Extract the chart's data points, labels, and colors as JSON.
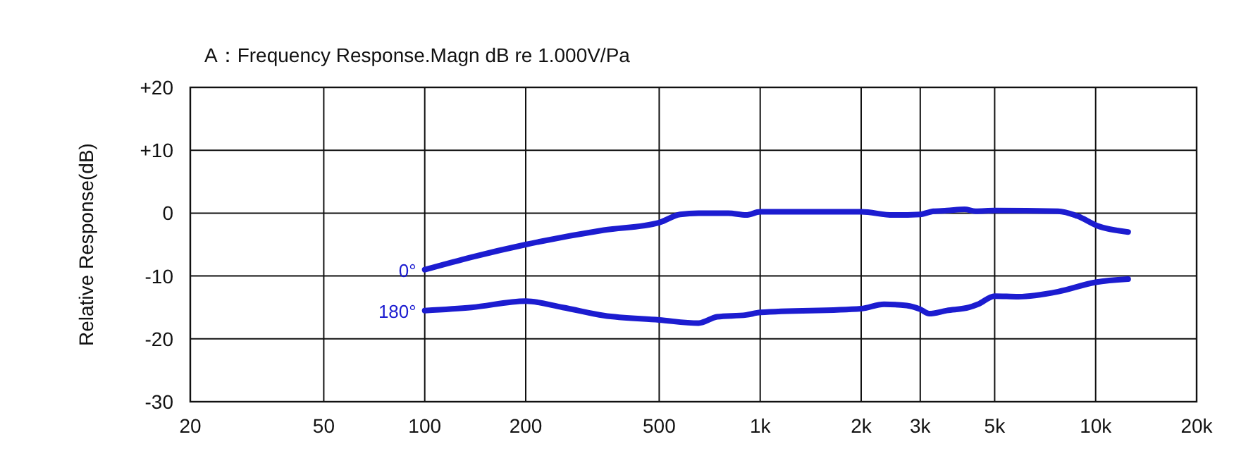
{
  "chart_data": {
    "type": "line",
    "title": "A：Frequency Response.Magn  dB re 1.000V/Pa",
    "ylabel": "Relative Response(dB)",
    "log": "x",
    "xlim": [
      20,
      20000
    ],
    "xticks": [
      20,
      50,
      100,
      200,
      500,
      {
        "value": 1000,
        "label": "1k"
      },
      {
        "value": 2000,
        "label": "2k"
      },
      {
        "value": 3000,
        "label": "3k"
      },
      {
        "value": 5000,
        "label": "5k"
      },
      {
        "value": 10000,
        "label": "10k"
      },
      {
        "value": 20000,
        "label": "20k"
      }
    ],
    "ylim": [
      -30,
      20
    ],
    "yticks": [
      {
        "value": 20,
        "label": "+20"
      },
      {
        "value": 10,
        "label": "+10"
      },
      0,
      -10,
      -20,
      -30
    ],
    "grid": true,
    "legend": false,
    "line_style": "solid",
    "series": [
      {
        "name": "0°",
        "color": "#1c1cd0",
        "x": [
          100,
          138,
          200,
          342,
          500,
          577,
          655,
          803,
          908,
          1000,
          2000,
          2488,
          3000,
          3286,
          3600,
          4065,
          4387,
          5000,
          7725,
          8850,
          10100,
          12500
        ],
        "values": [
          -9,
          -7,
          -5,
          -2.7,
          -1.5,
          -0.2,
          0,
          0,
          -0.3,
          0.2,
          0.2,
          -0.3,
          -0.2,
          0.3,
          0.4,
          0.6,
          0.3,
          0.4,
          0.3,
          -0.5,
          -2,
          -3
        ]
      },
      {
        "name": "180°",
        "color": "#1c1cd0",
        "x": [
          100,
          138,
          200,
          258,
          342,
          500,
          655,
          744,
          908,
          1000,
          2000,
          2338,
          2732,
          3000,
          3190,
          3600,
          4190,
          4455,
          5000,
          5887,
          7725,
          10000,
          12500
        ],
        "values": [
          -15.5,
          -15,
          -14,
          -15,
          -16.3,
          -17,
          -17.5,
          -16.5,
          -16.2,
          -15.8,
          -15.2,
          -14.5,
          -14.7,
          -15.3,
          -16,
          -15.5,
          -15,
          -14.5,
          -13.2,
          -13.3,
          -12.5,
          -11,
          -10.5
        ]
      }
    ]
  }
}
